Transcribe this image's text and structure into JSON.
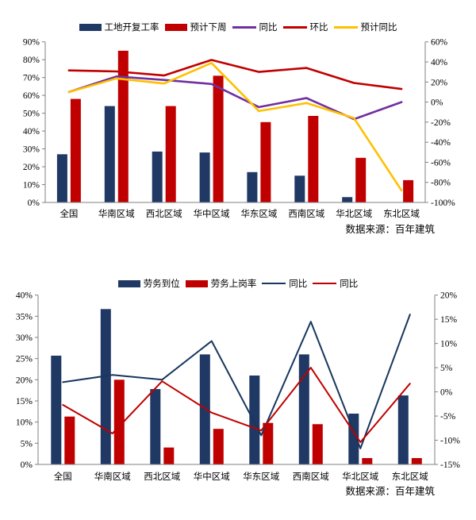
{
  "page": {
    "background": "#FFFFFF"
  },
  "chart_data": [
    {
      "type": "bar+line",
      "title": "",
      "categories": [
        "全国",
        "华南区域",
        "西北区域",
        "华中区域",
        "华东区域",
        "西南区域",
        "华北区域",
        "东北区域"
      ],
      "left_axis": {
        "min": 0,
        "max": 90,
        "step": 10,
        "unit": "%"
      },
      "right_axis": {
        "min": -100,
        "max": 60,
        "step": 20,
        "unit": "%"
      },
      "grid": false,
      "legend_position": "top",
      "bar_series": [
        {
          "name": "工地开复工率",
          "color": "#1F3864",
          "axis": "left",
          "values": [
            27,
            54,
            28.5,
            28,
            17,
            15,
            3,
            0
          ]
        },
        {
          "name": "预计下周",
          "color": "#C00000",
          "axis": "left",
          "values": [
            58,
            85,
            54,
            71,
            45,
            48.5,
            25,
            12.5
          ]
        }
      ],
      "line_series": [
        {
          "name": "同比",
          "color": "#7030A0",
          "axis": "right",
          "values": [
            10,
            25.5,
            22,
            18,
            -5,
            4,
            -17,
            0
          ]
        },
        {
          "name": "环比",
          "color": "#C00000",
          "axis": "right",
          "values": [
            31.5,
            30.5,
            26.5,
            42,
            30,
            34,
            19,
            13
          ]
        },
        {
          "name": "预计同比",
          "color": "#FFC000",
          "axis": "right",
          "values": [
            10,
            23.5,
            18.5,
            39,
            -9,
            -1,
            -16,
            -88
          ]
        }
      ],
      "source": "数据来源：百年建筑"
    },
    {
      "type": "bar+line",
      "title": "",
      "categories": [
        "全国",
        "华南区域",
        "西北区域",
        "华中区域",
        "华东区域",
        "西南区域",
        "华北区域",
        "东北区域"
      ],
      "left_axis": {
        "min": 0,
        "max": 40,
        "step": 5,
        "unit": "%"
      },
      "right_axis": {
        "min": -15,
        "max": 20,
        "step": 5,
        "unit": "%"
      },
      "grid": false,
      "legend_position": "top",
      "bar_series": [
        {
          "name": "劳务到位",
          "color": "#1F3864",
          "axis": "left",
          "values": [
            25.7,
            36.7,
            17.8,
            26,
            21,
            26,
            12,
            16.3
          ]
        },
        {
          "name": "劳务上岗率",
          "color": "#C00000",
          "axis": "left",
          "values": [
            11.3,
            20,
            4,
            8.4,
            9.8,
            9.5,
            1.5,
            1.5
          ]
        }
      ],
      "line_series": [
        {
          "name": "同比",
          "color": "#17375E",
          "axis": "right",
          "values": [
            2,
            3.5,
            2.5,
            10.5,
            -9,
            14.5,
            -11.7,
            16
          ]
        },
        {
          "name": "同比",
          "color": "#C00000",
          "axis": "right",
          "values": [
            -2.7,
            -8.6,
            2.2,
            -4.3,
            -8,
            5,
            -10.4,
            1.7
          ]
        }
      ],
      "source": "数据来源：百年建筑"
    }
  ]
}
